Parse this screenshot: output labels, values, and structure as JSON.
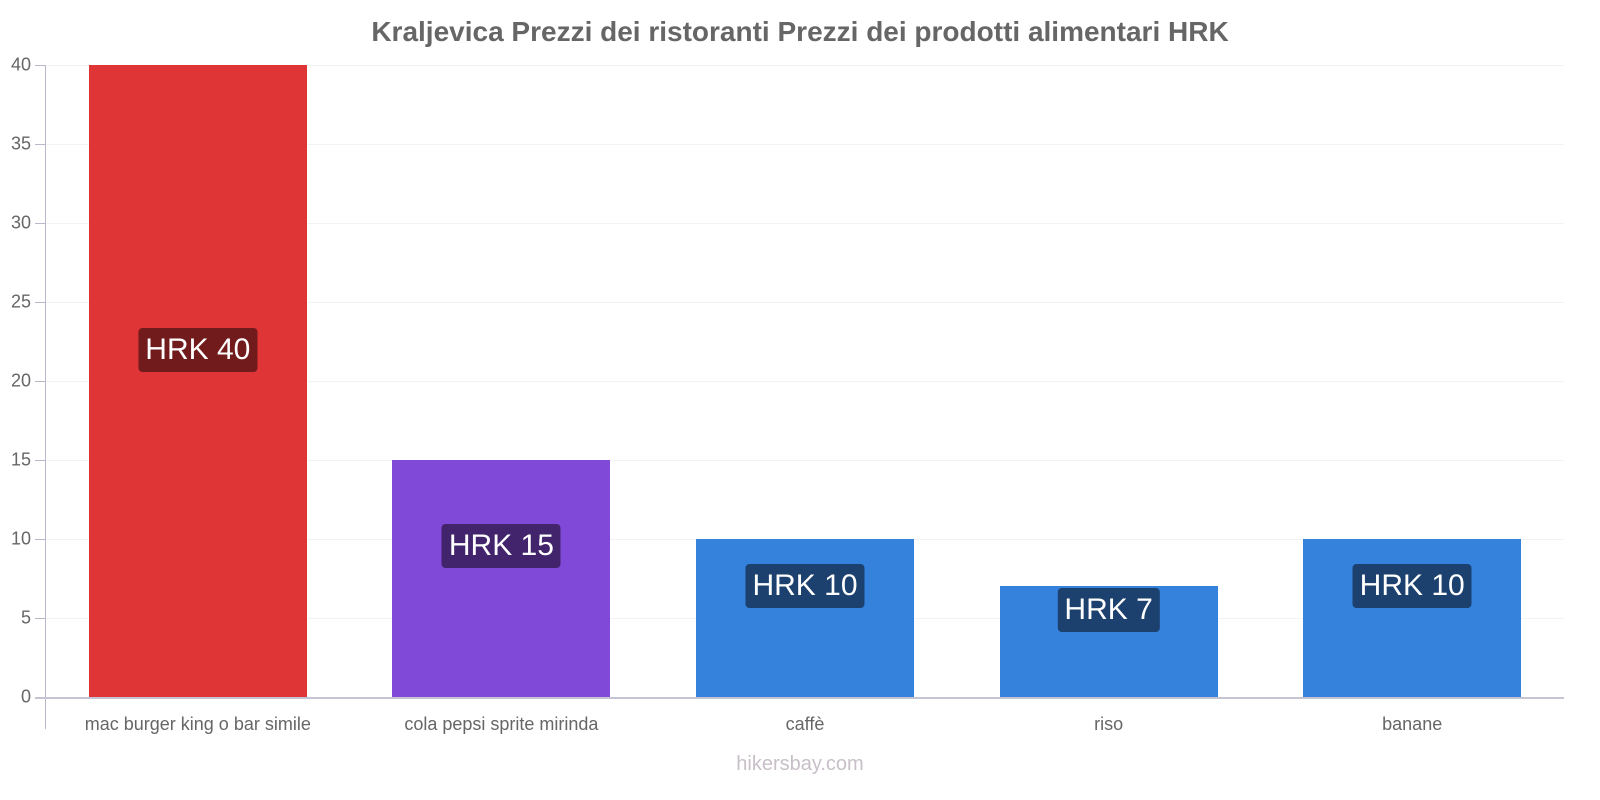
{
  "chart_data": {
    "type": "bar",
    "title": "Kraljevica Prezzi dei ristoranti Prezzi dei prodotti alimentari HRK",
    "categories": [
      "mac burger king o bar simile",
      "cola pepsi sprite mirinda",
      "caffè",
      "riso",
      "banane"
    ],
    "values": [
      40,
      15,
      10,
      7,
      10
    ],
    "value_labels": [
      "HRK 40",
      "HRK 15",
      "HRK 10",
      "HRK 7",
      "HRK 10"
    ],
    "bar_colors": [
      "#e03537",
      "#8049d8",
      "#3582dd",
      "#3582dd",
      "#3582dd"
    ],
    "label_colors": [
      "#711b1c",
      "#42246c",
      "#1c416e",
      "#1c416e",
      "#1c416e"
    ],
    "xlabel": "",
    "ylabel": "",
    "ylim": [
      0,
      40
    ],
    "yticks": [
      "0",
      "5",
      "10",
      "15",
      "20",
      "25",
      "30",
      "35",
      "40"
    ],
    "grid": true,
    "legend": null
  },
  "footer": {
    "watermark": "hikersbay.com"
  }
}
